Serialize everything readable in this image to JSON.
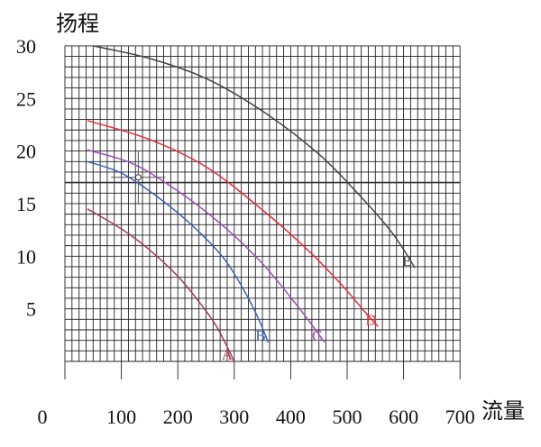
{
  "chart_data": {
    "type": "line",
    "ylabel": "扬程",
    "xlabel": "流量",
    "xlim": [
      0,
      700
    ],
    "ylim": [
      0,
      30
    ],
    "x_ticks": [
      "0",
      "100",
      "200",
      "300",
      "400",
      "500",
      "600",
      "700"
    ],
    "y_ticks": [
      "5",
      "10",
      "15",
      "20",
      "25",
      "30"
    ],
    "grid": true,
    "reference_line_y": 17,
    "operating_point": {
      "x": 130,
      "y": 17.5
    },
    "series": [
      {
        "name": "A",
        "color": "#a23a52",
        "x": [
          40,
          100,
          150,
          200,
          240,
          270,
          300
        ],
        "y": [
          14.5,
          12.6,
          10.6,
          8.1,
          5.5,
          3.2,
          0
        ]
      },
      {
        "name": "B",
        "color": "#3a62b8",
        "x": [
          40,
          100,
          160,
          220,
          280,
          320,
          345,
          360
        ],
        "y": [
          19.0,
          17.9,
          15.8,
          13.2,
          9.9,
          6.5,
          3.8,
          1.8
        ]
      },
      {
        "name": "C",
        "color": "#9a4fb6",
        "x": [
          40,
          120,
          200,
          280,
          350,
          410,
          440,
          460
        ],
        "y": [
          20.1,
          18.8,
          16.2,
          12.9,
          9.3,
          5.4,
          3.3,
          1.8
        ]
      },
      {
        "name": "D",
        "color": "#e82a36",
        "x": [
          40,
          150,
          250,
          350,
          430,
          490,
          530,
          555
        ],
        "y": [
          22.9,
          21.1,
          18.5,
          14.4,
          10.6,
          7.3,
          4.8,
          3.3
        ]
      },
      {
        "name": "E",
        "color": "#444444",
        "x": [
          50,
          150,
          250,
          350,
          450,
          520,
          580,
          620
        ],
        "y": [
          30.0,
          28.8,
          26.9,
          23.8,
          19.7,
          15.9,
          12.2,
          8.9
        ]
      }
    ]
  }
}
